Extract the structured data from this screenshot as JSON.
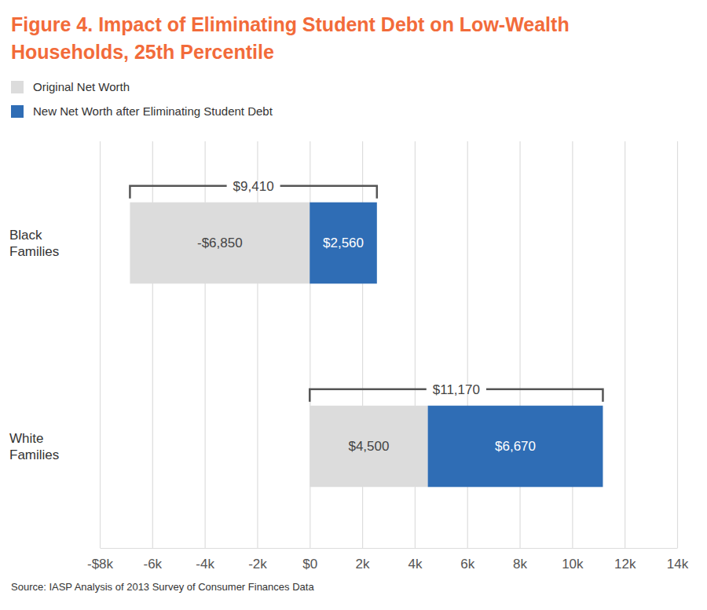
{
  "chart_data": {
    "type": "bar",
    "orientation": "horizontal",
    "stacked": true,
    "data_labels": true,
    "grid": true,
    "legend": "top-left",
    "title": "Figure 4. Impact of Eliminating Student Debt on Low-Wealth Households, 25th Percentile",
    "categories": [
      "Black Families",
      "White Families"
    ],
    "series": [
      {
        "name": "Original Net Worth",
        "color": "#dcdcdc",
        "values": [
          -6850,
          4500
        ],
        "value_labels": [
          "-$6,850",
          "$4,500"
        ]
      },
      {
        "name": "New Net Worth after Eliminating Student Debt",
        "color": "#2f6db5",
        "values": [
          2560,
          6670
        ],
        "value_labels": [
          "$2,560",
          "$6,670"
        ]
      }
    ],
    "spans": {
      "values": [
        9410,
        11170
      ],
      "value_labels": [
        "$9,410",
        "$11,170"
      ]
    },
    "xlim": [
      -8000,
      14000
    ],
    "xticks": [
      {
        "value": -8000,
        "label": "-$8k"
      },
      {
        "value": -6000,
        "label": "-6k"
      },
      {
        "value": -4000,
        "label": "-4k"
      },
      {
        "value": -2000,
        "label": "-2k"
      },
      {
        "value": 0,
        "label": "$0"
      },
      {
        "value": 2000,
        "label": "2k"
      },
      {
        "value": 4000,
        "label": "4k"
      },
      {
        "value": 6000,
        "label": "6k"
      },
      {
        "value": 8000,
        "label": "8k"
      },
      {
        "value": 10000,
        "label": "10k"
      },
      {
        "value": 12000,
        "label": "12k"
      },
      {
        "value": 14000,
        "label": "14k"
      }
    ],
    "source": "Source: IASP Analysis of 2013 Survey of Consumer Finances Data"
  }
}
